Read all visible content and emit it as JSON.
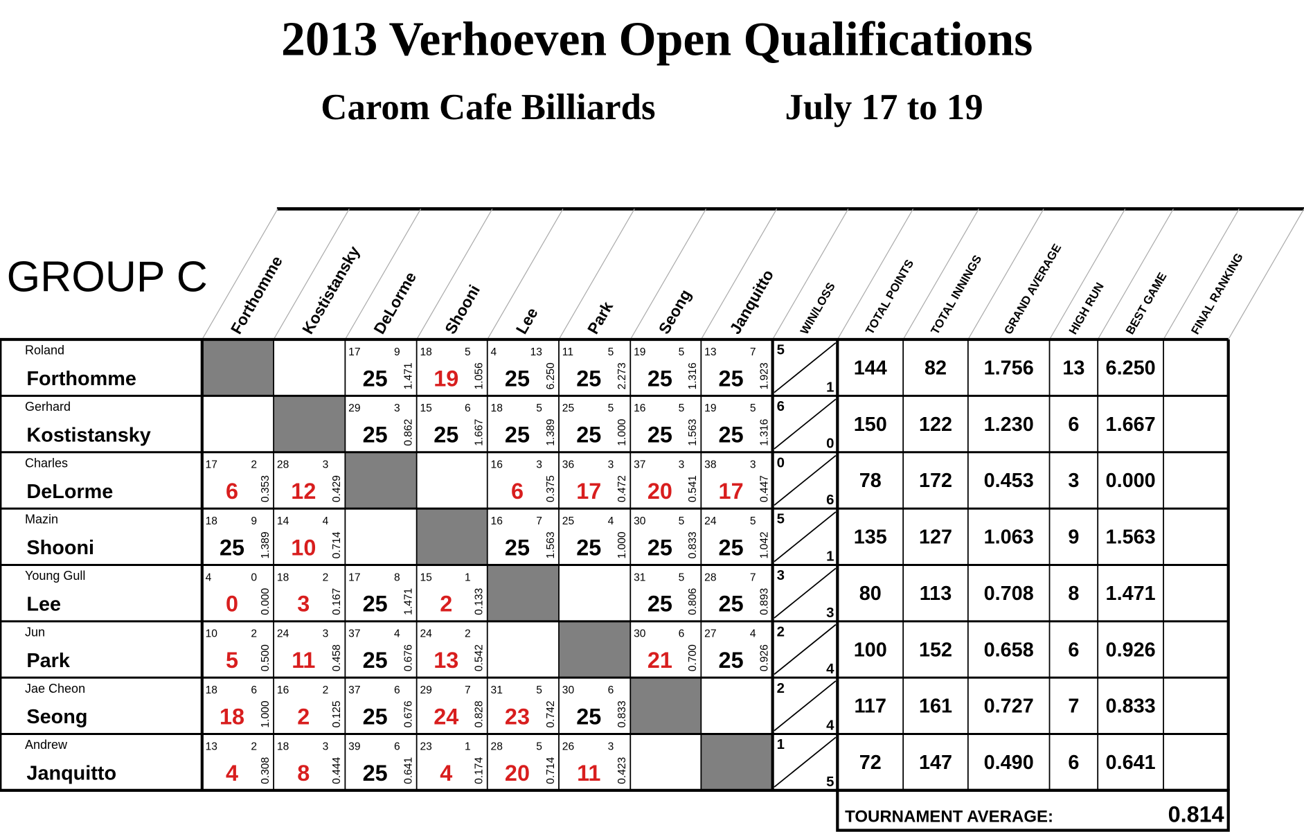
{
  "header": {
    "title": "2013 Verhoeven Open Qualifications",
    "venue": "Carom Cafe Billiards",
    "dates": "July 17 to 19"
  },
  "group": "GROUP C",
  "columns": [
    "Forthomme",
    "Kostistansky",
    "DeLorme",
    "Shooni",
    "Lee",
    "Park",
    "Seong",
    "Janquitto"
  ],
  "stat_columns": [
    "WIN/LOSS",
    "TOTAL POINTS",
    "TOTAL INNINGS",
    "GRAND AVERAGE",
    "HIGH RUN",
    "BEST GAME",
    "FINAL RANKING"
  ],
  "colors": {
    "win": "#000000",
    "loss": "#d81e1e",
    "diagonal": "#808080"
  },
  "rows": [
    {
      "first": "Roland",
      "last": "Forthomme",
      "games": [
        null,
        null,
        {
          "innings": 17,
          "high_run": 9,
          "score": 25,
          "average": "1.471"
        },
        {
          "innings": 18,
          "high_run": 5,
          "score": 19,
          "average": "1.056"
        },
        {
          "innings": 4,
          "high_run": 13,
          "score": 25,
          "average": "6.250"
        },
        {
          "innings": 11,
          "high_run": 5,
          "score": 25,
          "average": "2.273"
        },
        {
          "innings": 19,
          "high_run": 5,
          "score": 25,
          "average": "1.316"
        },
        {
          "innings": 13,
          "high_run": 7,
          "score": 25,
          "average": "1.923"
        }
      ],
      "win": 5,
      "loss": 1,
      "total_points": 144,
      "total_innings": 82,
      "grand_average": "1.756",
      "high_run": 13,
      "best_game": "6.250"
    },
    {
      "first": "Gerhard",
      "last": "Kostistansky",
      "games": [
        null,
        null,
        {
          "innings": 29,
          "high_run": 3,
          "score": 25,
          "average": "0.862"
        },
        {
          "innings": 15,
          "high_run": 6,
          "score": 25,
          "average": "1.667"
        },
        {
          "innings": 18,
          "high_run": 5,
          "score": 25,
          "average": "1.389"
        },
        {
          "innings": 25,
          "high_run": 5,
          "score": 25,
          "average": "1.000"
        },
        {
          "innings": 16,
          "high_run": 5,
          "score": 25,
          "average": "1.563"
        },
        {
          "innings": 19,
          "high_run": 5,
          "score": 25,
          "average": "1.316"
        }
      ],
      "win": 6,
      "loss": 0,
      "total_points": 150,
      "total_innings": 122,
      "grand_average": "1.230",
      "high_run": 6,
      "best_game": "1.667"
    },
    {
      "first": "Charles",
      "last": "DeLorme",
      "games": [
        {
          "innings": 17,
          "high_run": 2,
          "score": 6,
          "average": "0.353"
        },
        {
          "innings": 28,
          "high_run": 3,
          "score": 12,
          "average": "0.429"
        },
        null,
        null,
        {
          "innings": 16,
          "high_run": 3,
          "score": 6,
          "average": "0.375"
        },
        {
          "innings": 36,
          "high_run": 3,
          "score": 17,
          "average": "0.472"
        },
        {
          "innings": 37,
          "high_run": 3,
          "score": 20,
          "average": "0.541"
        },
        {
          "innings": 38,
          "high_run": 3,
          "score": 17,
          "average": "0.447"
        }
      ],
      "win": 0,
      "loss": 6,
      "total_points": 78,
      "total_innings": 172,
      "grand_average": "0.453",
      "high_run": 3,
      "best_game": "0.000"
    },
    {
      "first": "Mazin",
      "last": "Shooni",
      "games": [
        {
          "innings": 18,
          "high_run": 9,
          "score": 25,
          "average": "1.389"
        },
        {
          "innings": 14,
          "high_run": 4,
          "score": 10,
          "average": "0.714"
        },
        null,
        null,
        {
          "innings": 16,
          "high_run": 7,
          "score": 25,
          "average": "1.563"
        },
        {
          "innings": 25,
          "high_run": 4,
          "score": 25,
          "average": "1.000"
        },
        {
          "innings": 30,
          "high_run": 5,
          "score": 25,
          "average": "0.833"
        },
        {
          "innings": 24,
          "high_run": 5,
          "score": 25,
          "average": "1.042"
        }
      ],
      "win": 5,
      "loss": 1,
      "total_points": 135,
      "total_innings": 127,
      "grand_average": "1.063",
      "high_run": 9,
      "best_game": "1.563"
    },
    {
      "first": "Young Gull",
      "last": "Lee",
      "games": [
        {
          "innings": 4,
          "high_run": 0,
          "score": 0,
          "average": "0.000"
        },
        {
          "innings": 18,
          "high_run": 2,
          "score": 3,
          "average": "0.167"
        },
        {
          "innings": 17,
          "high_run": 8,
          "score": 25,
          "average": "1.471"
        },
        {
          "innings": 15,
          "high_run": 1,
          "score": 2,
          "average": "0.133"
        },
        null,
        null,
        {
          "innings": 31,
          "high_run": 5,
          "score": 25,
          "average": "0.806"
        },
        {
          "innings": 28,
          "high_run": 7,
          "score": 25,
          "average": "0.893"
        }
      ],
      "win": 3,
      "loss": 3,
      "total_points": 80,
      "total_innings": 113,
      "grand_average": "0.708",
      "high_run": 8,
      "best_game": "1.471"
    },
    {
      "first": "Jun",
      "last": "Park",
      "games": [
        {
          "innings": 10,
          "high_run": 2,
          "score": 5,
          "average": "0.500"
        },
        {
          "innings": 24,
          "high_run": 3,
          "score": 11,
          "average": "0.458"
        },
        {
          "innings": 37,
          "high_run": 4,
          "score": 25,
          "average": "0.676"
        },
        {
          "innings": 24,
          "high_run": 2,
          "score": 13,
          "average": "0.542"
        },
        null,
        null,
        {
          "innings": 30,
          "high_run": 6,
          "score": 21,
          "average": "0.700"
        },
        {
          "innings": 27,
          "high_run": 4,
          "score": 25,
          "average": "0.926"
        }
      ],
      "win": 2,
      "loss": 4,
      "total_points": 100,
      "total_innings": 152,
      "grand_average": "0.658",
      "high_run": 6,
      "best_game": "0.926"
    },
    {
      "first": "Jae Cheon",
      "last": "Seong",
      "games": [
        {
          "innings": 18,
          "high_run": 6,
          "score": 18,
          "average": "1.000"
        },
        {
          "innings": 16,
          "high_run": 2,
          "score": 2,
          "average": "0.125"
        },
        {
          "innings": 37,
          "high_run": 6,
          "score": 25,
          "average": "0.676"
        },
        {
          "innings": 29,
          "high_run": 7,
          "score": 24,
          "average": "0.828"
        },
        {
          "innings": 31,
          "high_run": 5,
          "score": 23,
          "average": "0.742"
        },
        {
          "innings": 30,
          "high_run": 6,
          "score": 25,
          "average": "0.833"
        },
        null,
        null
      ],
      "win": 2,
      "loss": 4,
      "total_points": 117,
      "total_innings": 161,
      "grand_average": "0.727",
      "high_run": 7,
      "best_game": "0.833"
    },
    {
      "first": "Andrew",
      "last": "Janquitto",
      "games": [
        {
          "innings": 13,
          "high_run": 2,
          "score": 4,
          "average": "0.308"
        },
        {
          "innings": 18,
          "high_run": 3,
          "score": 8,
          "average": "0.444"
        },
        {
          "innings": 39,
          "high_run": 6,
          "score": 25,
          "average": "0.641"
        },
        {
          "innings": 23,
          "high_run": 1,
          "score": 4,
          "average": "0.174"
        },
        {
          "innings": 28,
          "high_run": 5,
          "score": 20,
          "average": "0.714"
        },
        {
          "innings": 26,
          "high_run": 3,
          "score": 11,
          "average": "0.423"
        },
        null,
        null
      ],
      "win": 1,
      "loss": 5,
      "total_points": 72,
      "total_innings": 147,
      "grand_average": "0.490",
      "high_run": 6,
      "best_game": "0.641"
    }
  ],
  "footer": {
    "label": "TOURNAMENT AVERAGE:",
    "value": "0.814"
  }
}
